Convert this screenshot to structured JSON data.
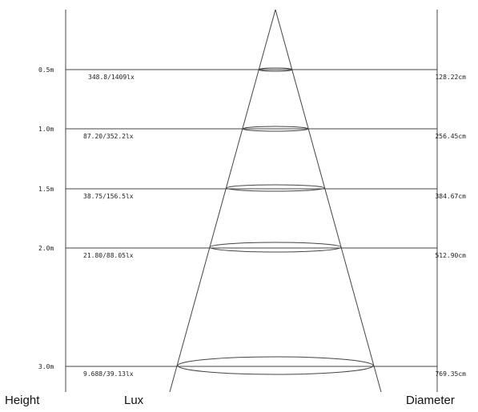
{
  "levels": [
    {
      "height": "0.5m",
      "lux": "348.8/1409lx",
      "diameter": "128.22cm"
    },
    {
      "height": "1.0m",
      "lux": "87.20/352.2lx",
      "diameter": "256.45cm"
    },
    {
      "height": "1.5m",
      "lux": "38.75/156.5lx",
      "diameter": "384.67cm"
    },
    {
      "height": "2.0m",
      "lux": "21.80/88.05lx",
      "diameter": "512.90cm"
    },
    {
      "height": "3.0m",
      "lux": "9.688/39.13lx",
      "diameter": "769.35cm"
    }
  ],
  "legend": {
    "height": "Height",
    "lux": "Lux",
    "diameter": "Diameter"
  },
  "colors": {
    "line": "#444444",
    "text": "#222222"
  }
}
